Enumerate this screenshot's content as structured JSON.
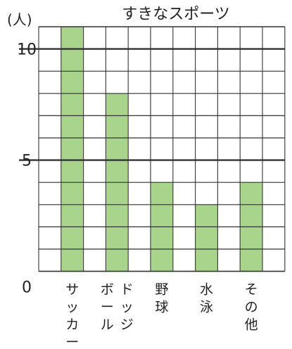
{
  "chart_data": {
    "type": "bar",
    "title": "すきなスポーツ",
    "ylabel": "(人)",
    "ylim": [
      0,
      11
    ],
    "y_ticks": [
      {
        "label": "0",
        "value": 0
      },
      {
        "label": "5",
        "value": 5
      },
      {
        "label": "10",
        "value": 10
      }
    ],
    "grid": true,
    "categories": [
      {
        "name": "サッカー",
        "lines": [
          "サッカー"
        ]
      },
      {
        "name": "ドッジボール",
        "lines": [
          "ドッジ",
          "ボール"
        ]
      },
      {
        "name": "野球",
        "lines": [
          "野球"
        ]
      },
      {
        "name": "水泳",
        "lines": [
          "水泳"
        ]
      },
      {
        "name": "その他",
        "lines": [
          "その他"
        ]
      }
    ],
    "values": [
      11,
      8,
      4,
      3,
      4
    ],
    "bar_color": "#a8d58b"
  }
}
